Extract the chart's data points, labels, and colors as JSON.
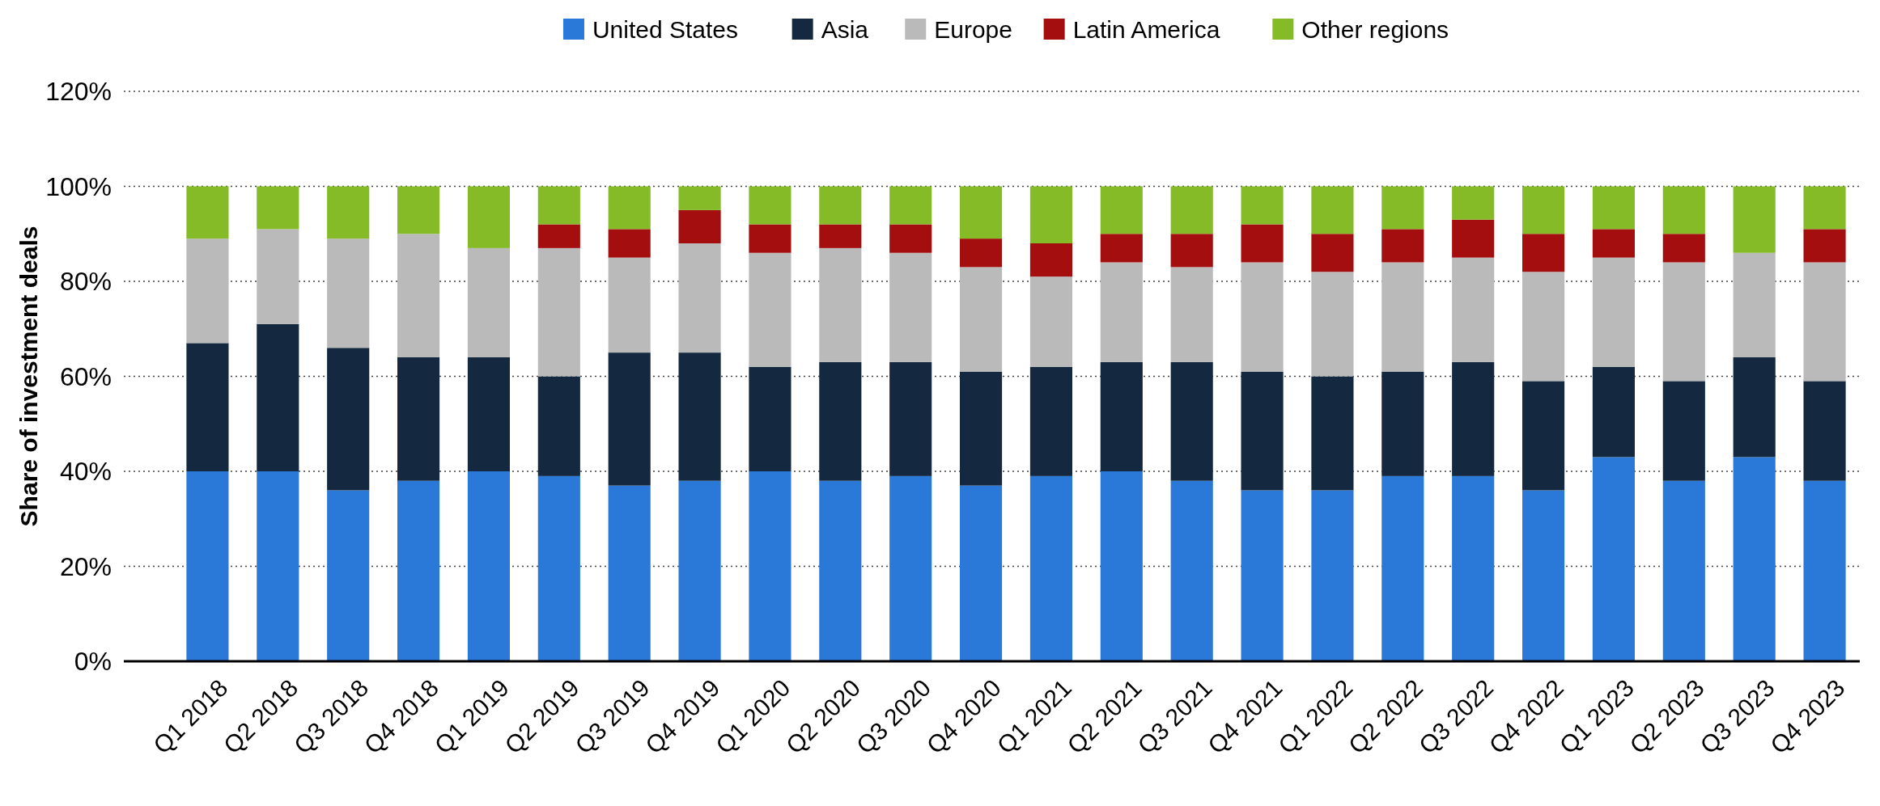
{
  "chart_data": {
    "type": "bar",
    "stacked": true,
    "ylabel": "Share of investment deals",
    "categories": [
      "Q1 2018",
      "Q2 2018",
      "Q3 2018",
      "Q4 2018",
      "Q1 2019",
      "Q2 2019",
      "Q3 2019",
      "Q4 2019",
      "Q1 2020",
      "Q2 2020",
      "Q3 2020",
      "Q4 2020",
      "Q1 2021",
      "Q2 2021",
      "Q3 2021",
      "Q4 2021",
      "Q1 2022",
      "Q2 2022",
      "Q3 2022",
      "Q4 2022",
      "Q1 2023",
      "Q2 2023",
      "Q3 2023",
      "Q4 2023"
    ],
    "series": [
      {
        "name": "United States",
        "color": "#2a78d8",
        "values": [
          40,
          40,
          36,
          38,
          40,
          39,
          37,
          38,
          40,
          38,
          39,
          37,
          39,
          40,
          38,
          36,
          36,
          39,
          39,
          36,
          43,
          38,
          43,
          38
        ]
      },
      {
        "name": "Asia",
        "color": "#14293f",
        "values": [
          27,
          31,
          30,
          26,
          24,
          21,
          28,
          27,
          22,
          25,
          24,
          24,
          23,
          23,
          25,
          25,
          24,
          22,
          24,
          23,
          19,
          21,
          21,
          21
        ]
      },
      {
        "name": "Europe",
        "color": "#bababa",
        "values": [
          22,
          20,
          23,
          26,
          23,
          27,
          20,
          23,
          24,
          24,
          23,
          22,
          19,
          21,
          20,
          23,
          22,
          23,
          22,
          23,
          23,
          25,
          22,
          25
        ]
      },
      {
        "name": "Latin America",
        "color": "#a50e0e",
        "values": [
          0,
          0,
          0,
          0,
          0,
          5,
          6,
          7,
          6,
          5,
          6,
          6,
          7,
          6,
          7,
          8,
          8,
          7,
          8,
          8,
          6,
          6,
          0,
          7
        ]
      },
      {
        "name": "Other regions",
        "color": "#84bb26",
        "values": [
          11,
          9,
          11,
          10,
          13,
          8,
          9,
          5,
          8,
          8,
          8,
          11,
          12,
          10,
          10,
          8,
          10,
          9,
          7,
          10,
          9,
          10,
          14,
          9
        ]
      }
    ],
    "ylim": [
      0,
      120
    ],
    "yticks": [
      {
        "value": 0,
        "label": "0%"
      },
      {
        "value": 20,
        "label": "20%"
      },
      {
        "value": 40,
        "label": "40%"
      },
      {
        "value": 60,
        "label": "60%"
      },
      {
        "value": 80,
        "label": "80%"
      },
      {
        "value": 100,
        "label": "100%"
      },
      {
        "value": 120,
        "label": "120%"
      }
    ],
    "grid": "y",
    "legend": "top"
  }
}
